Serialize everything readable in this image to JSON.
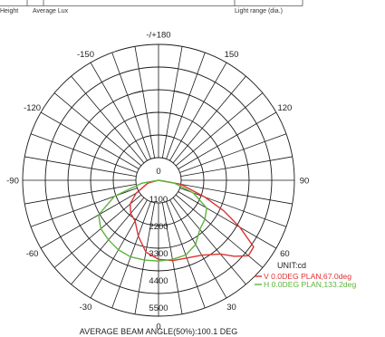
{
  "header": {
    "height_label": "Height",
    "average_lux_label": "Average Lux",
    "light_range_label": "Light range (dia.)"
  },
  "chart_data": {
    "type": "polar",
    "unit_label": "UNIT:cd",
    "footer": "AVERAGE BEAM ANGLE(50%):100.1 DEG",
    "radial_max": 5500,
    "radial_ticks": [
      0,
      1100,
      2200,
      3300,
      4400,
      5500
    ],
    "radial_tick_labels": [
      "0",
      "1100",
      "2200",
      "3300",
      "4400",
      "5500"
    ],
    "angle_ticks": [
      {
        "angle": 180,
        "label": "-/+180"
      },
      {
        "angle": 150,
        "label": "150"
      },
      {
        "angle": 120,
        "label": "120"
      },
      {
        "angle": 90,
        "label": "90"
      },
      {
        "angle": 60,
        "label": "60"
      },
      {
        "angle": 30,
        "label": "30"
      },
      {
        "angle": 0,
        "label": "0"
      },
      {
        "angle": -30,
        "label": "-30"
      },
      {
        "angle": -60,
        "label": "-60"
      },
      {
        "angle": -90,
        "label": "-90"
      },
      {
        "angle": -120,
        "label": "-120"
      },
      {
        "angle": -150,
        "label": "-150"
      }
    ],
    "series": [
      {
        "name": "V 0.0DEG PLAN,67.0deg",
        "color": "#e03131",
        "points": [
          [
            -90,
            0
          ],
          [
            -75,
            450
          ],
          [
            -60,
            1050
          ],
          [
            -50,
            1500
          ],
          [
            -40,
            1750
          ],
          [
            -30,
            1900
          ],
          [
            -20,
            2400
          ],
          [
            -10,
            2950
          ],
          [
            0,
            3200
          ],
          [
            10,
            3300
          ],
          [
            20,
            3350
          ],
          [
            30,
            3500
          ],
          [
            40,
            3900
          ],
          [
            45,
            4350
          ],
          [
            50,
            4750
          ],
          [
            55,
            4700
          ],
          [
            60,
            3800
          ],
          [
            65,
            2900
          ],
          [
            70,
            2000
          ],
          [
            80,
            900
          ],
          [
            90,
            0
          ]
        ]
      },
      {
        "name": "H 0.0DEG PLAN,133.2deg",
        "color": "#5db33b",
        "points": [
          [
            -90,
            0
          ],
          [
            -80,
            700
          ],
          [
            -70,
            1900
          ],
          [
            -60,
            2800
          ],
          [
            -50,
            3050
          ],
          [
            -40,
            3150
          ],
          [
            -30,
            3250
          ],
          [
            -20,
            3300
          ],
          [
            -10,
            3280
          ],
          [
            0,
            3270
          ],
          [
            10,
            3250
          ],
          [
            20,
            3220
          ],
          [
            30,
            3000
          ],
          [
            40,
            2600
          ],
          [
            50,
            2450
          ],
          [
            60,
            2250
          ],
          [
            70,
            1500
          ],
          [
            80,
            650
          ],
          [
            90,
            0
          ]
        ]
      }
    ]
  }
}
